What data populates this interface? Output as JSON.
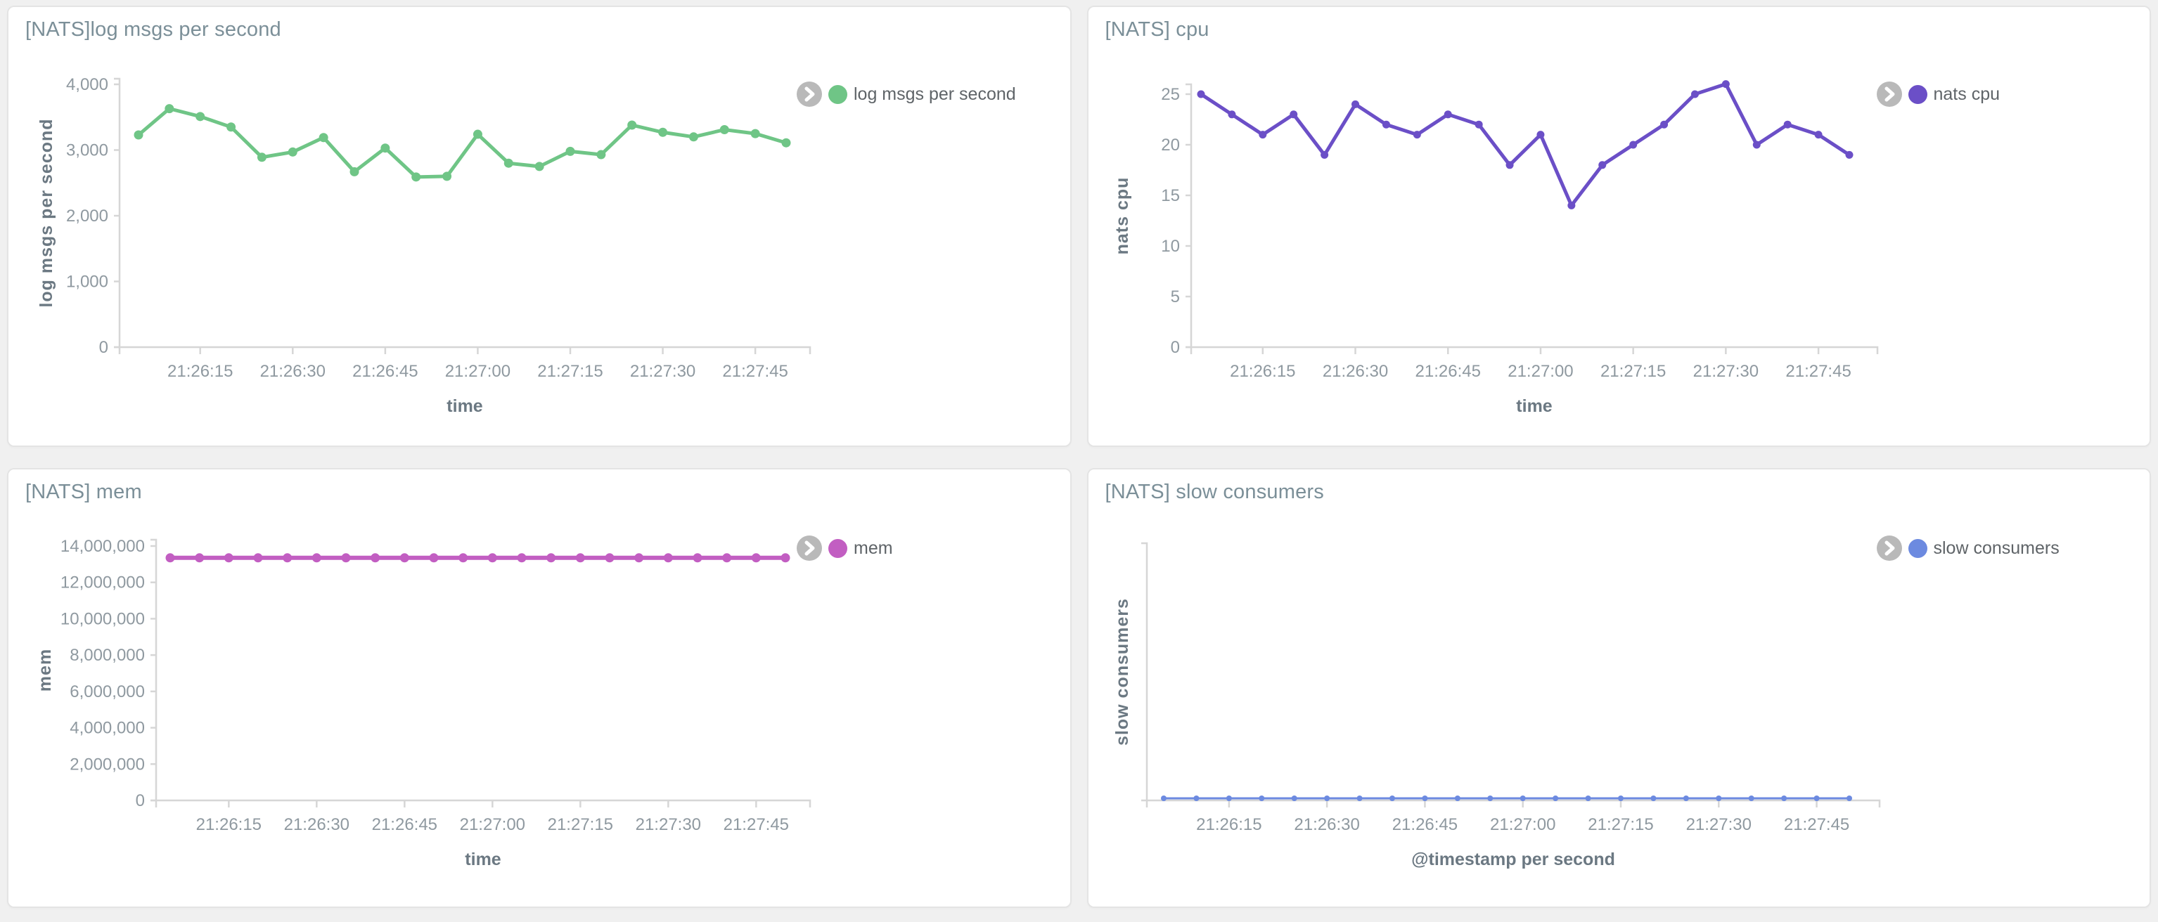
{
  "page": {
    "background_color": "#f0f0f0",
    "panel_background": "#ffffff",
    "panel_border_color": "#e4e4e4",
    "title_color": "#7b8f98",
    "tick_label_color": "#8f99a0",
    "axis_label_color": "#6b7882",
    "axis_line_color": "#d6d6d6",
    "legend_chevron_icon": "chevron-right-icon",
    "legend_chevron_bg": "#b9b9b9"
  },
  "chart_data": [
    {
      "type": "line",
      "title": "[NATS]log msgs per second",
      "legend": {
        "label": "log msgs per second",
        "color": "#6fc586",
        "position": "right"
      },
      "color": "#6fc586",
      "xlabel": "time",
      "ylabel": "log msgs per second",
      "ylim": [
        0,
        4000
      ],
      "grid": false,
      "x": [
        "21:26:05",
        "21:26:10",
        "21:26:15",
        "21:26:20",
        "21:26:25",
        "21:26:30",
        "21:26:35",
        "21:26:40",
        "21:26:45",
        "21:26:50",
        "21:26:55",
        "21:27:00",
        "21:27:05",
        "21:27:10",
        "21:27:15",
        "21:27:20",
        "21:27:25",
        "21:27:30",
        "21:27:35",
        "21:27:40",
        "21:27:45",
        "21:27:50"
      ],
      "values": [
        3230,
        3630,
        3510,
        3350,
        2890,
        2970,
        3190,
        2670,
        3030,
        2590,
        2600,
        3240,
        2800,
        2750,
        2980,
        2930,
        3380,
        3270,
        3200,
        3310,
        3250,
        3110
      ],
      "x_tick_labels": [
        "21:26:15",
        "21:26:30",
        "21:26:45",
        "21:27:00",
        "21:27:15",
        "21:27:30",
        "21:27:45"
      ],
      "y_tick_labels": [
        "4,000",
        "3,000",
        "2,000",
        "1,000",
        "0"
      ],
      "y_tick_values": [
        4000,
        3000,
        2000,
        1000,
        0
      ]
    },
    {
      "type": "line",
      "title": "[NATS] cpu",
      "legend": {
        "label": "nats cpu",
        "color": "#6b4fc7",
        "position": "right"
      },
      "color": "#6b4fc7",
      "xlabel": "time",
      "ylabel": "nats cpu",
      "ylim": [
        0,
        26
      ],
      "grid": false,
      "x": [
        "21:26:05",
        "21:26:10",
        "21:26:15",
        "21:26:20",
        "21:26:25",
        "21:26:30",
        "21:26:35",
        "21:26:40",
        "21:26:45",
        "21:26:50",
        "21:26:55",
        "21:27:00",
        "21:27:05",
        "21:27:10",
        "21:27:15",
        "21:27:20",
        "21:27:25",
        "21:27:30",
        "21:27:35",
        "21:27:40",
        "21:27:45",
        "21:27:50"
      ],
      "values": [
        25,
        23,
        21,
        23,
        19,
        24,
        22,
        21,
        23,
        22,
        18,
        21,
        14,
        18,
        20,
        22,
        25,
        26,
        20,
        22,
        21,
        19
      ],
      "x_tick_labels": [
        "21:26:15",
        "21:26:30",
        "21:26:45",
        "21:27:00",
        "21:27:15",
        "21:27:30",
        "21:27:45"
      ],
      "y_tick_labels": [
        "25",
        "20",
        "15",
        "10",
        "5",
        "0"
      ],
      "y_tick_values": [
        25,
        20,
        15,
        10,
        5,
        0
      ]
    },
    {
      "type": "line",
      "title": "[NATS] mem",
      "legend": {
        "label": "mem",
        "color": "#c25ec2",
        "position": "right"
      },
      "color": "#c25ec2",
      "xlabel": "time",
      "ylabel": "mem",
      "ylim": [
        0,
        14000000
      ],
      "grid": false,
      "x": [
        "21:26:05",
        "21:26:10",
        "21:26:15",
        "21:26:20",
        "21:26:25",
        "21:26:30",
        "21:26:35",
        "21:26:40",
        "21:26:45",
        "21:26:50",
        "21:26:55",
        "21:27:00",
        "21:27:05",
        "21:27:10",
        "21:27:15",
        "21:27:20",
        "21:27:25",
        "21:27:30",
        "21:27:35",
        "21:27:40",
        "21:27:45",
        "21:27:50"
      ],
      "values": [
        13350000,
        13350000,
        13350000,
        13350000,
        13350000,
        13350000,
        13350000,
        13350000,
        13350000,
        13350000,
        13350000,
        13350000,
        13350000,
        13350000,
        13350000,
        13350000,
        13350000,
        13350000,
        13350000,
        13350000,
        13350000,
        13350000
      ],
      "x_tick_labels": [
        "21:26:15",
        "21:26:30",
        "21:26:45",
        "21:27:00",
        "21:27:15",
        "21:27:30",
        "21:27:45"
      ],
      "y_tick_labels": [
        "14,000,000",
        "12,000,000",
        "10,000,000",
        "8,000,000",
        "6,000,000",
        "4,000,000",
        "2,000,000",
        "0"
      ],
      "y_tick_values": [
        14000000,
        12000000,
        10000000,
        8000000,
        6000000,
        4000000,
        2000000,
        0
      ]
    },
    {
      "type": "line",
      "title": "[NATS] slow consumers",
      "legend": {
        "label": "slow consumers",
        "color": "#6c8ae0",
        "position": "right"
      },
      "color": "#6c8ae0",
      "xlabel": "@timestamp per second",
      "ylabel": "slow consumers",
      "ylim": [
        0,
        1
      ],
      "grid": false,
      "x": [
        "21:26:05",
        "21:26:10",
        "21:26:15",
        "21:26:20",
        "21:26:25",
        "21:26:30",
        "21:26:35",
        "21:26:40",
        "21:26:45",
        "21:26:50",
        "21:26:55",
        "21:27:00",
        "21:27:05",
        "21:27:10",
        "21:27:15",
        "21:27:20",
        "21:27:25",
        "21:27:30",
        "21:27:35",
        "21:27:40",
        "21:27:45",
        "21:27:50"
      ],
      "values": [
        0,
        0,
        0,
        0,
        0,
        0,
        0,
        0,
        0,
        0,
        0,
        0,
        0,
        0,
        0,
        0,
        0,
        0,
        0,
        0,
        0,
        0
      ],
      "x_tick_labels": [
        "21:26:15",
        "21:26:30",
        "21:26:45",
        "21:27:00",
        "21:27:15",
        "21:27:30",
        "21:27:45"
      ],
      "y_tick_labels": [],
      "y_tick_values": []
    }
  ]
}
